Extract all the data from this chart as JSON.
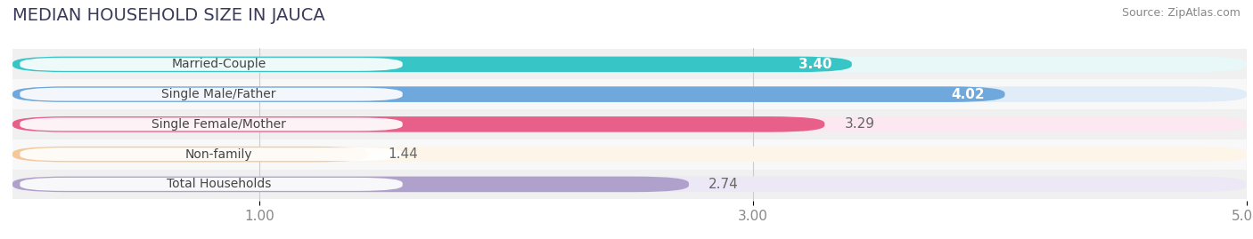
{
  "title": "MEDIAN HOUSEHOLD SIZE IN JAUCA",
  "source": "Source: ZipAtlas.com",
  "categories": [
    "Married-Couple",
    "Single Male/Father",
    "Single Female/Mother",
    "Non-family",
    "Total Households"
  ],
  "values": [
    3.4,
    4.02,
    3.29,
    1.44,
    2.74
  ],
  "bar_colors": [
    "#38c5c5",
    "#6fa8dc",
    "#e8608a",
    "#f5c899",
    "#b0a0cc"
  ],
  "bar_bg_colors": [
    "#e8f8f8",
    "#e0ecf8",
    "#fce8f0",
    "#fdf5e8",
    "#ede8f5"
  ],
  "row_bg_colors": [
    "#f0f0f0",
    "#f8f8f8",
    "#f0f0f0",
    "#f8f8f8",
    "#f0f0f0"
  ],
  "xlim": [
    0,
    5.0
  ],
  "xticks": [
    1.0,
    3.0,
    5.0
  ],
  "value_inside": [
    true,
    true,
    false,
    false,
    false
  ],
  "title_fontsize": 14,
  "tick_fontsize": 11,
  "bar_label_fontsize": 10,
  "value_fontsize": 11,
  "background_color": "#ffffff"
}
